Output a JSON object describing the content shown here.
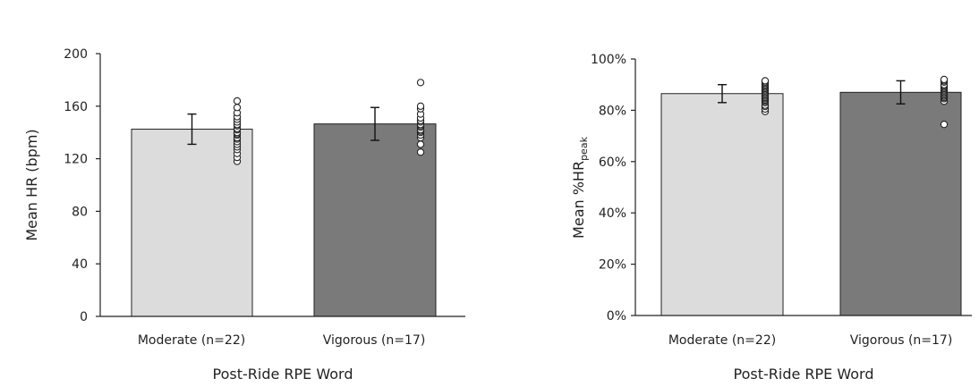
{
  "chart_data": [
    {
      "type": "bar",
      "categories": [
        "Moderate (n=22)",
        "Vigorous (n=17)"
      ],
      "values": [
        142.5,
        146.5
      ],
      "errors": [
        11.5,
        12.5
      ],
      "points": [
        [
          118,
          121,
          124,
          127,
          129,
          131,
          133,
          135,
          136,
          138,
          139,
          140,
          142,
          143,
          145,
          146,
          148,
          150,
          152,
          155,
          159,
          164
        ],
        [
          125,
          131,
          136,
          138,
          140,
          141,
          142,
          144,
          145,
          146,
          148,
          149,
          151,
          154,
          158,
          160,
          178
        ]
      ],
      "bar_colors": [
        "#dcdcdc",
        "#7a7a7a"
      ],
      "xlabel": "Post-Ride RPE Word",
      "ylabel": "Mean HR (bpm)",
      "yticks": [
        "0",
        "40",
        "80",
        "120",
        "160",
        "200"
      ],
      "ylim": [
        0,
        200
      ],
      "grid": false,
      "legend": "none"
    },
    {
      "type": "bar",
      "categories": [
        "Moderate (n=22)",
        "Vigorous (n=17)"
      ],
      "values": [
        86.5,
        87
      ],
      "errors": [
        3.5,
        4.5
      ],
      "points": [
        [
          79.5,
          80.5,
          81.5,
          82,
          83,
          83.5,
          84,
          84.5,
          85,
          85.5,
          86,
          86.5,
          87,
          87.5,
          88,
          88.5,
          89,
          89.5,
          90,
          90.5,
          91,
          91.5
        ],
        [
          74.5,
          83.5,
          84.5,
          85,
          85.5,
          86,
          86.5,
          87,
          87.5,
          88,
          88.5,
          89,
          89.5,
          90,
          91,
          91.5,
          92
        ]
      ],
      "bar_colors": [
        "#dcdcdc",
        "#7a7a7a"
      ],
      "xlabel": "Post-Ride RPE Word",
      "ylabel": "Mean %HR",
      "ylabel_sub": "peak",
      "yticks": [
        "0%",
        "20%",
        "40%",
        "60%",
        "80%",
        "100%"
      ],
      "ylim": [
        0,
        100
      ],
      "grid": false,
      "legend": "none"
    }
  ]
}
